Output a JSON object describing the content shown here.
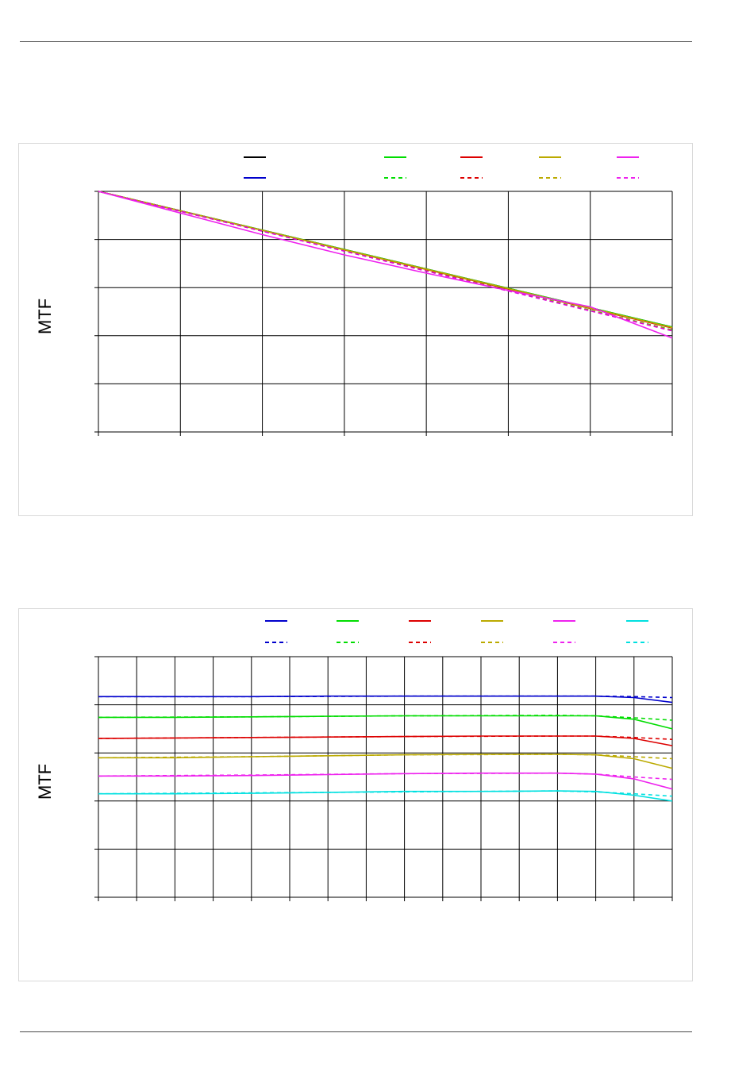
{
  "chart_data": [
    {
      "type": "line",
      "title": "",
      "xlabel": "",
      "ylabel": "MTF",
      "xlim": [
        0,
        7
      ],
      "ylim": [
        0,
        5
      ],
      "x_gridlines": 7,
      "y_gridlines": 5,
      "grid": true,
      "legend": "top",
      "series": [
        {
          "color": "#000000",
          "dash": false,
          "x": [
            0,
            7
          ],
          "y": [
            5,
            2.18
          ]
        },
        {
          "color": "#0000cc",
          "dash": false,
          "x": [
            0,
            7
          ],
          "y": [
            5,
            2.17
          ]
        },
        {
          "color": "#00dd00",
          "dash": false,
          "x": [
            0,
            7
          ],
          "y": [
            5,
            2.18
          ]
        },
        {
          "color": "#00dd00",
          "dash": true,
          "x": [
            0,
            7
          ],
          "y": [
            5,
            2.12
          ]
        },
        {
          "color": "#dd0000",
          "dash": false,
          "x": [
            0,
            7
          ],
          "y": [
            5,
            2.16
          ]
        },
        {
          "color": "#dd0000",
          "dash": true,
          "x": [
            0,
            7
          ],
          "y": [
            5,
            2.11
          ]
        },
        {
          "color": "#bbaa00",
          "dash": false,
          "x": [
            0,
            7
          ],
          "y": [
            5,
            2.17
          ]
        },
        {
          "color": "#bbaa00",
          "dash": true,
          "x": [
            0,
            7
          ],
          "y": [
            5,
            2.11
          ]
        },
        {
          "color": "#dd00dd",
          "dash": true,
          "x": [
            0,
            7
          ],
          "y": [
            5,
            2.1
          ]
        },
        {
          "color": "#ee22ee",
          "dash": false,
          "x": [
            0,
            1,
            2,
            3,
            4,
            5,
            6,
            7
          ],
          "y": [
            5,
            4.55,
            4.1,
            3.68,
            3.3,
            2.94,
            2.6,
            1.95
          ]
        }
      ],
      "legend_entries": [
        {
          "color": "#000000",
          "dash": false
        },
        {
          "color": "#00dd00",
          "dash": false
        },
        {
          "color": "#dd0000",
          "dash": false
        },
        {
          "color": "#bbaa00",
          "dash": false
        },
        {
          "color": "#ee22ee",
          "dash": false
        },
        {
          "color": "#0000cc",
          "dash": false
        },
        {
          "color": "#00dd00",
          "dash": true
        },
        {
          "color": "#dd0000",
          "dash": true
        },
        {
          "color": "#bbaa00",
          "dash": true
        },
        {
          "color": "#ee22ee",
          "dash": true
        }
      ]
    },
    {
      "type": "line",
      "title": "",
      "xlabel": "",
      "ylabel": "MTF",
      "xlim": [
        0,
        15
      ],
      "ylim": [
        0,
        5
      ],
      "x_gridlines": 15,
      "y_gridlines": 5,
      "grid": true,
      "legend": "top",
      "series": [
        {
          "color": "#0000cc",
          "dash": false,
          "x": [
            0,
            2,
            4,
            6,
            8,
            10,
            12,
            13,
            14,
            15
          ],
          "y": [
            4.17,
            4.17,
            4.17,
            4.18,
            4.18,
            4.18,
            4.18,
            4.18,
            4.15,
            4.05
          ]
        },
        {
          "color": "#0000cc",
          "dash": true,
          "x": [
            0,
            4,
            8,
            12,
            13,
            14,
            15
          ],
          "y": [
            4.17,
            4.17,
            4.18,
            4.18,
            4.18,
            4.17,
            4.15
          ]
        },
        {
          "color": "#00dd00",
          "dash": false,
          "x": [
            0,
            2,
            4,
            6,
            8,
            10,
            12,
            13,
            14,
            15
          ],
          "y": [
            3.74,
            3.74,
            3.75,
            3.76,
            3.77,
            3.77,
            3.77,
            3.77,
            3.7,
            3.5
          ]
        },
        {
          "color": "#00dd00",
          "dash": true,
          "x": [
            0,
            4,
            8,
            12,
            13,
            14,
            15
          ],
          "y": [
            3.74,
            3.75,
            3.77,
            3.78,
            3.77,
            3.73,
            3.68
          ]
        },
        {
          "color": "#dd0000",
          "dash": false,
          "x": [
            0,
            2,
            4,
            6,
            8,
            10,
            12,
            13,
            14,
            15
          ],
          "y": [
            3.3,
            3.31,
            3.32,
            3.33,
            3.34,
            3.35,
            3.35,
            3.35,
            3.3,
            3.15
          ]
        },
        {
          "color": "#dd0000",
          "dash": true,
          "x": [
            0,
            4,
            8,
            12,
            13,
            14,
            15
          ],
          "y": [
            3.3,
            3.32,
            3.34,
            3.35,
            3.35,
            3.32,
            3.28
          ]
        },
        {
          "color": "#bbaa00",
          "dash": false,
          "x": [
            0,
            2,
            4,
            6,
            8,
            10,
            12,
            13,
            14,
            15
          ],
          "y": [
            2.9,
            2.9,
            2.92,
            2.94,
            2.96,
            2.97,
            2.97,
            2.96,
            2.88,
            2.68
          ]
        },
        {
          "color": "#bbaa00",
          "dash": true,
          "x": [
            0,
            4,
            8,
            12,
            13,
            14,
            15
          ],
          "y": [
            2.9,
            2.92,
            2.96,
            2.97,
            2.96,
            2.92,
            2.88
          ]
        },
        {
          "color": "#ee22ee",
          "dash": false,
          "x": [
            0,
            2,
            4,
            6,
            8,
            10,
            12,
            13,
            14,
            15
          ],
          "y": [
            2.52,
            2.52,
            2.53,
            2.55,
            2.57,
            2.58,
            2.58,
            2.56,
            2.46,
            2.25
          ]
        },
        {
          "color": "#ee22ee",
          "dash": true,
          "x": [
            0,
            4,
            8,
            12,
            13,
            14,
            15
          ],
          "y": [
            2.52,
            2.54,
            2.57,
            2.58,
            2.56,
            2.5,
            2.45
          ]
        },
        {
          "color": "#00e0e0",
          "dash": false,
          "x": [
            0,
            2,
            4,
            6,
            8,
            10,
            12,
            13,
            14,
            15
          ],
          "y": [
            2.15,
            2.15,
            2.16,
            2.18,
            2.2,
            2.2,
            2.21,
            2.2,
            2.12,
            2.0
          ]
        },
        {
          "color": "#00e0e0",
          "dash": true,
          "x": [
            0,
            4,
            8,
            12,
            13,
            14,
            15
          ],
          "y": [
            2.15,
            2.17,
            2.19,
            2.21,
            2.19,
            2.15,
            2.1
          ]
        }
      ],
      "legend_entries": [
        {
          "color": "#0000cc",
          "dash": false
        },
        {
          "color": "#00dd00",
          "dash": false
        },
        {
          "color": "#dd0000",
          "dash": false
        },
        {
          "color": "#bbaa00",
          "dash": false
        },
        {
          "color": "#ee22ee",
          "dash": false
        },
        {
          "color": "#00e0e0",
          "dash": false
        },
        {
          "color": "#0000cc",
          "dash": true
        },
        {
          "color": "#00dd00",
          "dash": true
        },
        {
          "color": "#dd0000",
          "dash": true
        },
        {
          "color": "#bbaa00",
          "dash": true
        },
        {
          "color": "#ee22ee",
          "dash": true
        },
        {
          "color": "#00e0e0",
          "dash": true
        }
      ]
    }
  ]
}
